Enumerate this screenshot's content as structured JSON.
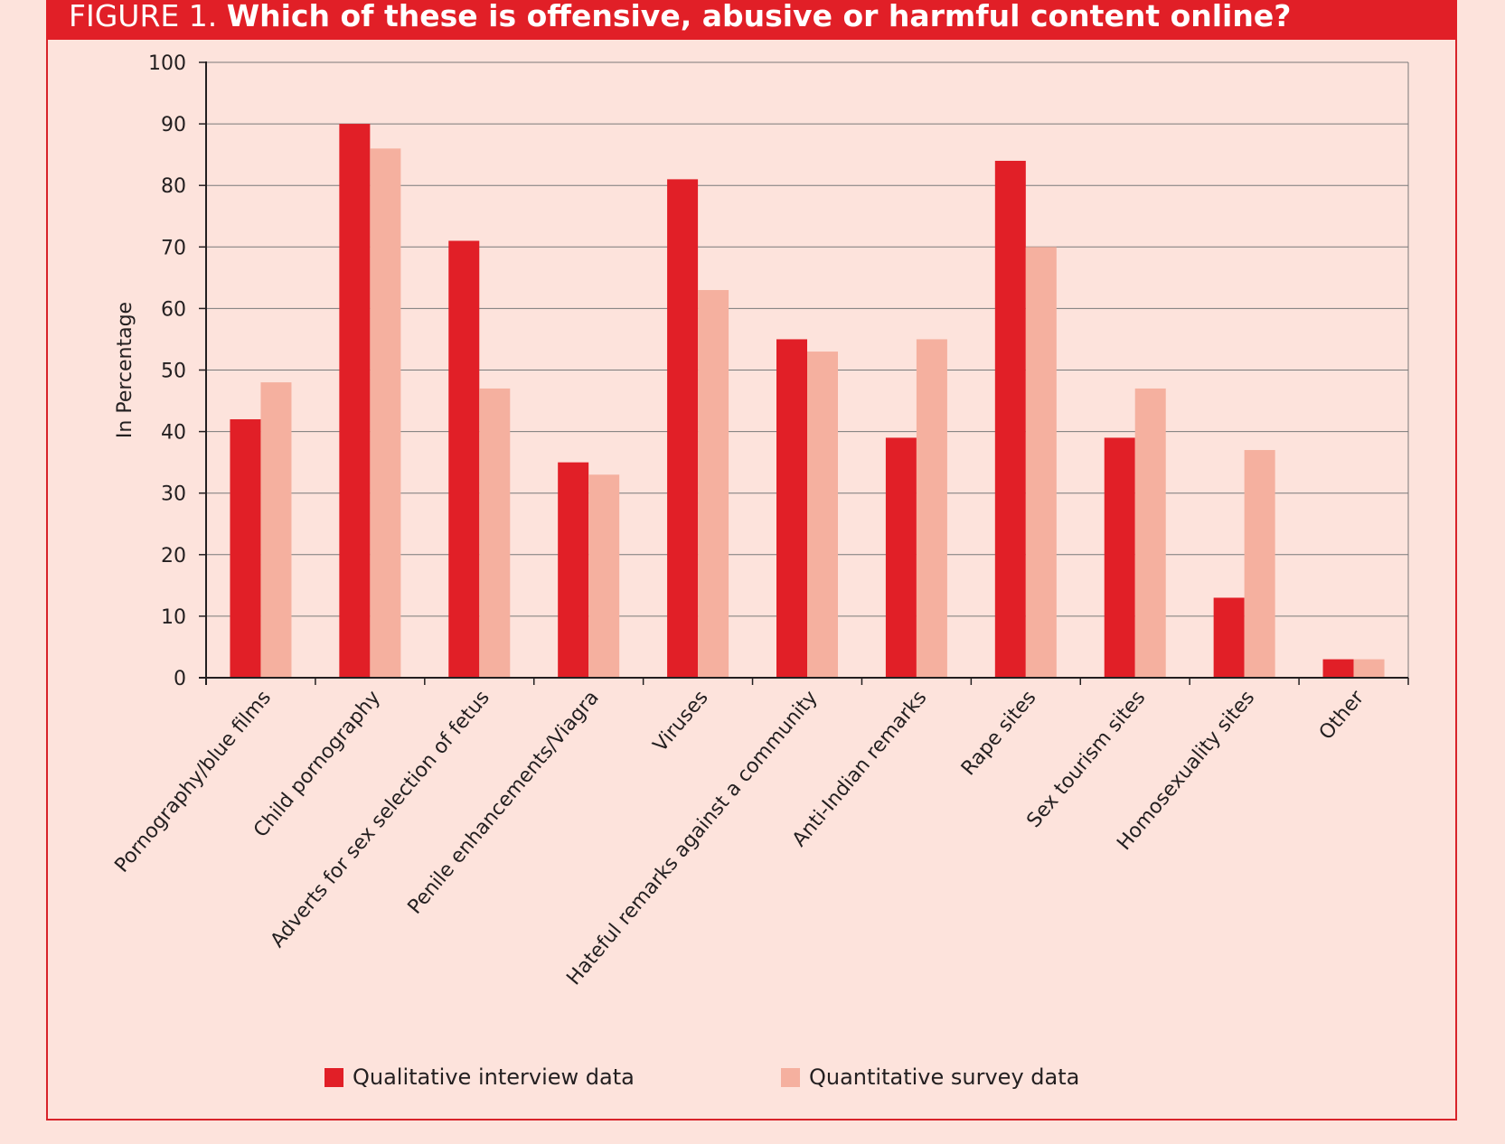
{
  "figure": {
    "label": "FIGURE 1.",
    "title": "Which of these is offensive, abusive or harmful content online?"
  },
  "colors": {
    "background": "#fde3dc",
    "title_bar": "#e11f27",
    "series_qualitative": "#e11f27",
    "series_quantitative": "#f5b09f",
    "gridline": "#7a7a7a",
    "axis": "#231f20"
  },
  "chart_data": {
    "type": "bar",
    "title": "Which of these is offensive, abusive or harmful content online?",
    "xlabel": "",
    "ylabel": "In Percentage",
    "ylim": [
      0,
      100
    ],
    "yticks": [
      0,
      10,
      20,
      30,
      40,
      50,
      60,
      70,
      80,
      90,
      100
    ],
    "grid": true,
    "legend_position": "bottom",
    "categories": [
      "Pornography/blue films",
      "Child pornography",
      "Adverts for sex selection of fetus",
      "Penile enhancements/Viagra",
      "Viruses",
      "Hateful remarks against a community",
      "Anti-Indian remarks",
      "Rape sites",
      "Sex tourism sites",
      "Homosexuality sites",
      "Other"
    ],
    "series": [
      {
        "name": "Qualitative interview data",
        "color": "#e11f27",
        "values": [
          42,
          90,
          71,
          35,
          81,
          55,
          39,
          84,
          39,
          13,
          3
        ]
      },
      {
        "name": "Quantitative survey data",
        "color": "#f5b09f",
        "values": [
          48,
          86,
          47,
          33,
          63,
          53,
          55,
          70,
          47,
          37,
          3
        ]
      }
    ]
  }
}
